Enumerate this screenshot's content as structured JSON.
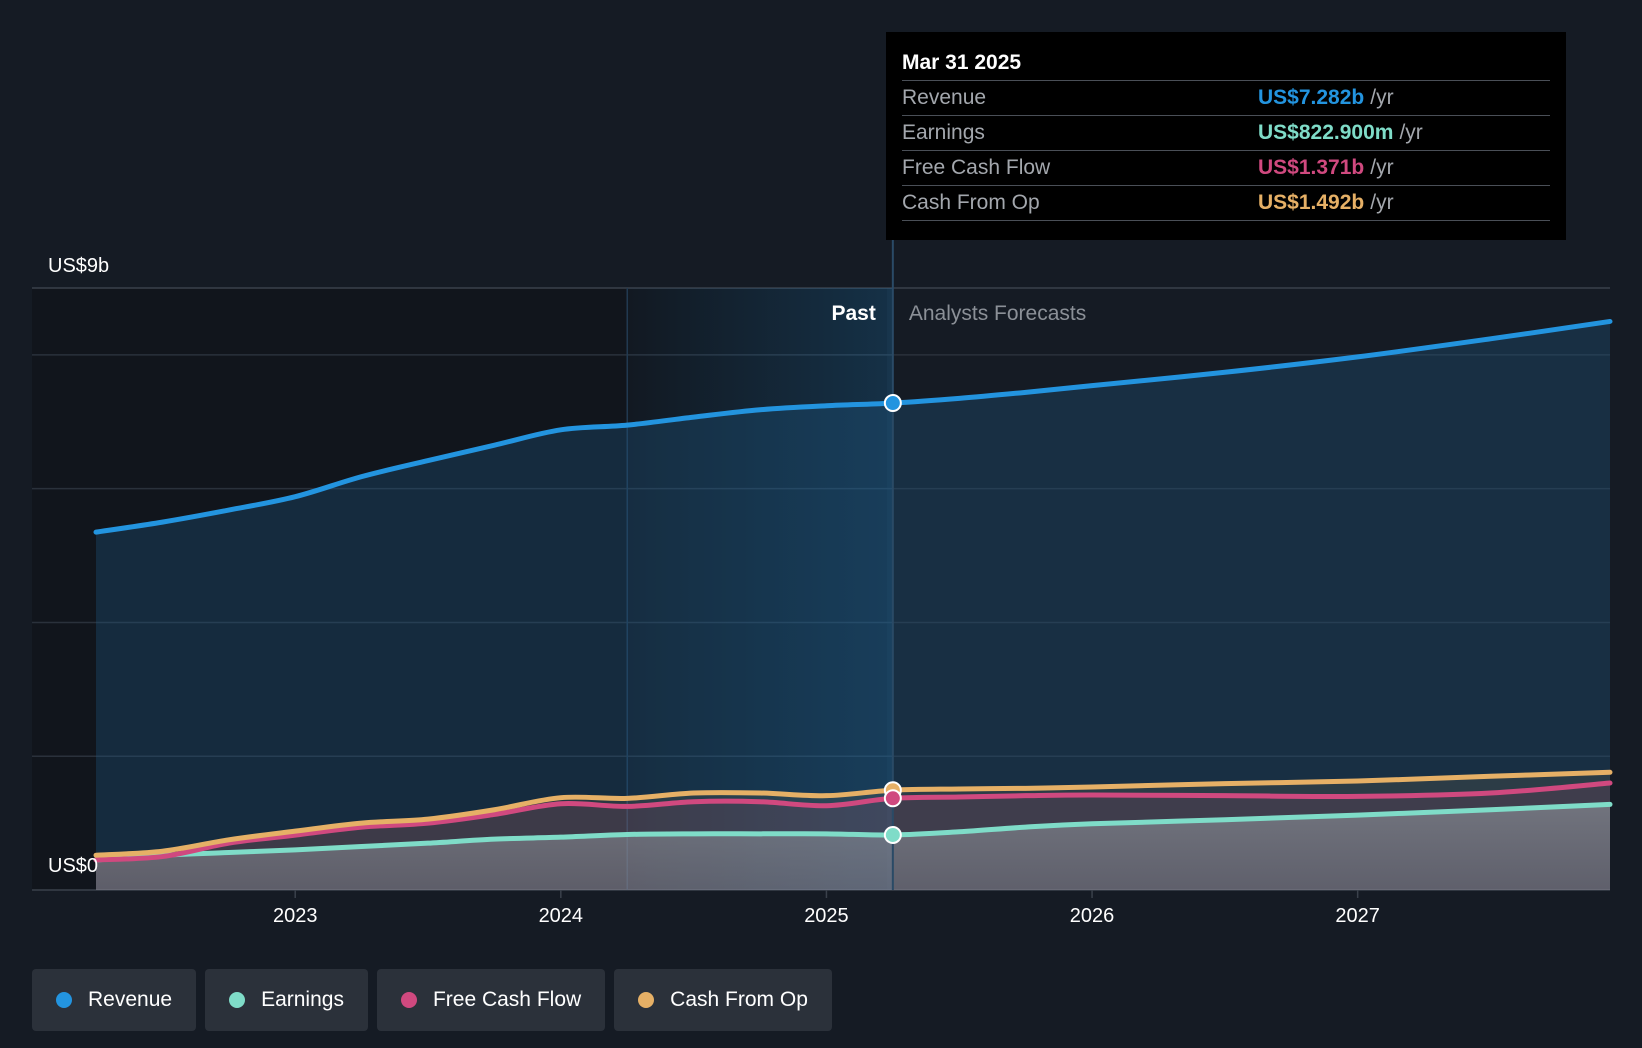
{
  "chart_data": {
    "type": "line",
    "y_top_label": "US$9b",
    "y_bottom_label": "US$0",
    "ylim": [
      0,
      9
    ],
    "xlim": [
      2022.25,
      2027.95
    ],
    "x_ticks": [
      2023,
      2024,
      2025,
      2026,
      2027
    ],
    "x_tick_labels": [
      "2023",
      "2024",
      "2025",
      "2026",
      "2027"
    ],
    "grid": true,
    "past_label": "Past",
    "forecast_label": "Analysts Forecasts",
    "divider_x": 2025.25,
    "highlight_start_x": 2024.25,
    "series": [
      {
        "name": "Revenue",
        "color": "#2394df",
        "x": [
          2022.25,
          2022.5,
          2022.75,
          2023.0,
          2023.25,
          2023.5,
          2023.75,
          2024.0,
          2024.25,
          2024.5,
          2024.75,
          2025.0,
          2025.25,
          2025.5,
          2025.75,
          2026.0,
          2026.5,
          2027.0,
          2027.5,
          2027.95
        ],
        "values": [
          5.35,
          5.5,
          5.68,
          5.88,
          6.18,
          6.42,
          6.65,
          6.88,
          6.95,
          7.07,
          7.18,
          7.24,
          7.28,
          7.35,
          7.44,
          7.54,
          7.74,
          7.97,
          8.24,
          8.5
        ]
      },
      {
        "name": "Earnings",
        "color": "#7fdcc8",
        "x": [
          2022.25,
          2022.5,
          2022.75,
          2023.0,
          2023.25,
          2023.5,
          2023.75,
          2024.0,
          2024.25,
          2024.5,
          2024.75,
          2025.0,
          2025.25,
          2025.5,
          2025.75,
          2026.0,
          2026.5,
          2027.0,
          2027.5,
          2027.95
        ],
        "values": [
          0.45,
          0.52,
          0.56,
          0.6,
          0.65,
          0.7,
          0.76,
          0.79,
          0.83,
          0.84,
          0.84,
          0.84,
          0.823,
          0.87,
          0.94,
          0.99,
          1.05,
          1.12,
          1.2,
          1.28
        ]
      },
      {
        "name": "Free Cash Flow",
        "color": "#d0497f",
        "x": [
          2022.25,
          2022.5,
          2022.75,
          2023.0,
          2023.25,
          2023.5,
          2023.75,
          2024.0,
          2024.25,
          2024.5,
          2024.75,
          2025.0,
          2025.25,
          2025.5,
          2025.75,
          2026.0,
          2026.5,
          2027.0,
          2027.5,
          2027.95
        ],
        "values": [
          0.45,
          0.5,
          0.7,
          0.82,
          0.94,
          1.0,
          1.13,
          1.29,
          1.25,
          1.32,
          1.32,
          1.26,
          1.371,
          1.39,
          1.41,
          1.42,
          1.41,
          1.4,
          1.45,
          1.6
        ]
      },
      {
        "name": "Cash From Op",
        "color": "#e6b066",
        "x": [
          2022.25,
          2022.5,
          2022.75,
          2023.0,
          2023.25,
          2023.5,
          2023.75,
          2024.0,
          2024.25,
          2024.5,
          2024.75,
          2025.0,
          2025.25,
          2025.5,
          2025.75,
          2026.0,
          2026.5,
          2027.0,
          2027.5,
          2027.95
        ],
        "values": [
          0.52,
          0.58,
          0.75,
          0.88,
          1.0,
          1.06,
          1.2,
          1.38,
          1.37,
          1.45,
          1.45,
          1.41,
          1.492,
          1.51,
          1.52,
          1.54,
          1.59,
          1.63,
          1.7,
          1.76
        ]
      }
    ]
  },
  "tooltip": {
    "date": "Mar 31 2025",
    "rows": [
      {
        "label": "Revenue",
        "value": "US$7.282b",
        "unit": "/yr",
        "color": "#2394df"
      },
      {
        "label": "Earnings",
        "value": "US$822.900m",
        "unit": "/yr",
        "color": "#7fdcc8"
      },
      {
        "label": "Free Cash Flow",
        "value": "US$1.371b",
        "unit": "/yr",
        "color": "#d0497f"
      },
      {
        "label": "Cash From Op",
        "value": "US$1.492b",
        "unit": "/yr",
        "color": "#e6b066"
      }
    ]
  },
  "legend": [
    {
      "label": "Revenue",
      "color": "#2394df"
    },
    {
      "label": "Earnings",
      "color": "#7fdcc8"
    },
    {
      "label": "Free Cash Flow",
      "color": "#d0497f"
    },
    {
      "label": "Cash From Op",
      "color": "#e6b066"
    }
  ]
}
